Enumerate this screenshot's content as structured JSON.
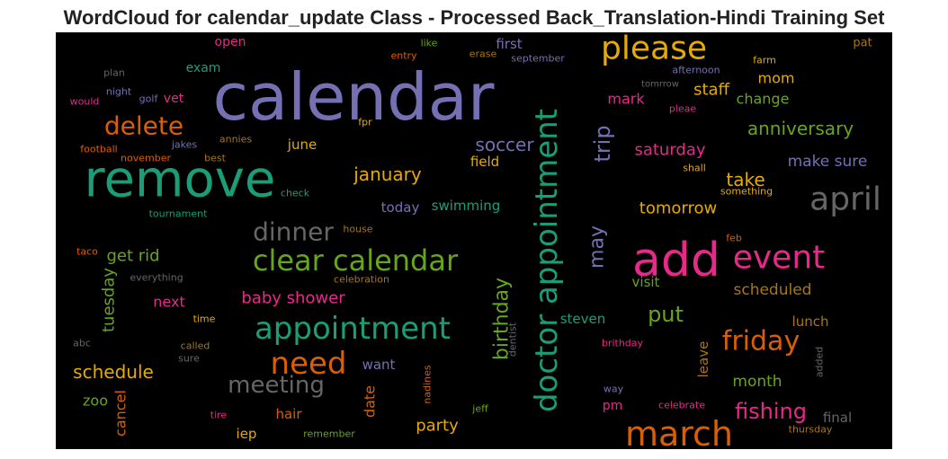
{
  "chart_data": {
    "type": "wordcloud",
    "title": "WordCloud for calendar_update Class - Processed Back_Translation-Hindi Training Set",
    "background": "#000000",
    "words": [
      {
        "text": "calendar",
        "weight": 72,
        "color": "#7570b3"
      },
      {
        "text": "remove",
        "weight": 56,
        "color": "#1b9e77"
      },
      {
        "text": "add",
        "weight": 52,
        "color": "#e7298a"
      },
      {
        "text": "doctor appointment",
        "weight": 34,
        "color": "#1b9e77"
      },
      {
        "text": "march",
        "weight": 38,
        "color": "#d95f02"
      },
      {
        "text": "please",
        "weight": 36,
        "color": "#e6ab02"
      },
      {
        "text": "april",
        "weight": 36,
        "color": "#666666"
      },
      {
        "text": "event",
        "weight": 36,
        "color": "#e7298a"
      },
      {
        "text": "appointment",
        "weight": 34,
        "color": "#1b9e77"
      },
      {
        "text": "clear calendar",
        "weight": 32,
        "color": "#66a61e"
      },
      {
        "text": "need",
        "weight": 34,
        "color": "#d95f02"
      },
      {
        "text": "delete",
        "weight": 28,
        "color": "#d95f02"
      },
      {
        "text": "friday",
        "weight": 30,
        "color": "#d95f02"
      },
      {
        "text": "dinner",
        "weight": 28,
        "color": "#666666"
      },
      {
        "text": "meeting",
        "weight": 26,
        "color": "#666666"
      },
      {
        "text": "trip",
        "weight": 24,
        "color": "#7570b3"
      },
      {
        "text": "may",
        "weight": 22,
        "color": "#7570b3"
      },
      {
        "text": "birthday",
        "weight": 22,
        "color": "#66a61e"
      },
      {
        "text": "put",
        "weight": 24,
        "color": "#66a61e"
      },
      {
        "text": "fishing",
        "weight": 24,
        "color": "#e7298a"
      },
      {
        "text": "soccer",
        "weight": 20,
        "color": "#7570b3"
      },
      {
        "text": "january",
        "weight": 20,
        "color": "#e6ab02"
      },
      {
        "text": "saturday",
        "weight": 18,
        "color": "#e7298a"
      },
      {
        "text": "anniversary",
        "weight": 20,
        "color": "#66a61e"
      },
      {
        "text": "tomorrow",
        "weight": 18,
        "color": "#e6ab02"
      },
      {
        "text": "take",
        "weight": 20,
        "color": "#e6ab02"
      },
      {
        "text": "make sure",
        "weight": 17,
        "color": "#7570b3"
      },
      {
        "text": "schedule",
        "weight": 20,
        "color": "#e6ab02"
      },
      {
        "text": "tuesday",
        "weight": 18,
        "color": "#66a61e"
      },
      {
        "text": "get rid",
        "weight": 18,
        "color": "#66a61e"
      },
      {
        "text": "next",
        "weight": 16,
        "color": "#e7298a"
      },
      {
        "text": "baby shower",
        "weight": 18,
        "color": "#e7298a"
      },
      {
        "text": "staff",
        "weight": 18,
        "color": "#e6ab02"
      },
      {
        "text": "change",
        "weight": 16,
        "color": "#66a61e"
      },
      {
        "text": "mom",
        "weight": 16,
        "color": "#e6ab02"
      },
      {
        "text": "mark",
        "weight": 16,
        "color": "#e7298a"
      },
      {
        "text": "scheduled",
        "weight": 17,
        "color": "#a6761d"
      },
      {
        "text": "lunch",
        "weight": 15,
        "color": "#a6761d"
      },
      {
        "text": "visit",
        "weight": 15,
        "color": "#66a61e"
      },
      {
        "text": "steven",
        "weight": 15,
        "color": "#1b9e77"
      },
      {
        "text": "month",
        "weight": 17,
        "color": "#66a61e"
      },
      {
        "text": "leave",
        "weight": 15,
        "color": "#a6761d"
      },
      {
        "text": "party",
        "weight": 18,
        "color": "#e6ab02"
      },
      {
        "text": "date",
        "weight": 16,
        "color": "#d95f02"
      },
      {
        "text": "cancel",
        "weight": 16,
        "color": "#d95f02"
      },
      {
        "text": "zoo",
        "weight": 16,
        "color": "#66a61e"
      },
      {
        "text": "hair",
        "weight": 15,
        "color": "#d95f02"
      },
      {
        "text": "iep",
        "weight": 15,
        "color": "#e6ab02"
      },
      {
        "text": "want",
        "weight": 15,
        "color": "#7570b3"
      },
      {
        "text": "swimming",
        "weight": 15,
        "color": "#1b9e77"
      },
      {
        "text": "today",
        "weight": 15,
        "color": "#7570b3"
      },
      {
        "text": "field",
        "weight": 15,
        "color": "#e6ab02"
      },
      {
        "text": "june",
        "weight": 15,
        "color": "#e6ab02"
      },
      {
        "text": "vet",
        "weight": 14,
        "color": "#e7298a"
      },
      {
        "text": "exam",
        "weight": 14,
        "color": "#1b9e77"
      },
      {
        "text": "open",
        "weight": 14,
        "color": "#e7298a"
      },
      {
        "text": "first",
        "weight": 15,
        "color": "#7570b3"
      },
      {
        "text": "pm",
        "weight": 14,
        "color": "#e7298a"
      },
      {
        "text": "final",
        "weight": 15,
        "color": "#666666"
      },
      {
        "text": "pat",
        "weight": 13,
        "color": "#a6761d"
      },
      {
        "text": "farm",
        "weight": 11,
        "color": "#e6ab02"
      },
      {
        "text": "afternoon",
        "weight": 11,
        "color": "#7570b3"
      },
      {
        "text": "tomrrow",
        "weight": 10,
        "color": "#666666"
      },
      {
        "text": "pleae",
        "weight": 11,
        "color": "#e7298a"
      },
      {
        "text": "fpr",
        "weight": 11,
        "color": "#e6ab02"
      },
      {
        "text": "september",
        "weight": 11,
        "color": "#7570b3"
      },
      {
        "text": "erase",
        "weight": 11,
        "color": "#a6761d"
      },
      {
        "text": "entry",
        "weight": 11,
        "color": "#d95f02"
      },
      {
        "text": "like",
        "weight": 11,
        "color": "#66a61e"
      },
      {
        "text": "plan",
        "weight": 11,
        "color": "#666666"
      },
      {
        "text": "night",
        "weight": 11,
        "color": "#7570b3"
      },
      {
        "text": "golf",
        "weight": 11,
        "color": "#7570b3"
      },
      {
        "text": "would",
        "weight": 11,
        "color": "#e7298a"
      },
      {
        "text": "football",
        "weight": 11,
        "color": "#d95f02"
      },
      {
        "text": "november",
        "weight": 11,
        "color": "#d95f02"
      },
      {
        "text": "jakes",
        "weight": 11,
        "color": "#7570b3"
      },
      {
        "text": "annies",
        "weight": 11,
        "color": "#a6761d"
      },
      {
        "text": "best",
        "weight": 11,
        "color": "#a6761d"
      },
      {
        "text": "check",
        "weight": 11,
        "color": "#1b9e77"
      },
      {
        "text": "tournament",
        "weight": 11,
        "color": "#1b9e77"
      },
      {
        "text": "house",
        "weight": 11,
        "color": "#a6761d"
      },
      {
        "text": "taco",
        "weight": 11,
        "color": "#d95f02"
      },
      {
        "text": "everything",
        "weight": 11,
        "color": "#666666"
      },
      {
        "text": "celebration",
        "weight": 11,
        "color": "#a6761d"
      },
      {
        "text": "something",
        "weight": 11,
        "color": "#e6ab02"
      },
      {
        "text": "shall",
        "weight": 11,
        "color": "#e6ab02"
      },
      {
        "text": "feb",
        "weight": 11,
        "color": "#d95f02"
      },
      {
        "text": "time",
        "weight": 11,
        "color": "#e6ab02"
      },
      {
        "text": "called",
        "weight": 11,
        "color": "#a6761d"
      },
      {
        "text": "sure",
        "weight": 11,
        "color": "#666666"
      },
      {
        "text": "abc",
        "weight": 11,
        "color": "#666666"
      },
      {
        "text": "dentist",
        "weight": 11,
        "color": "#666666"
      },
      {
        "text": "brithday",
        "weight": 11,
        "color": "#e7298a"
      },
      {
        "text": "added",
        "weight": 11,
        "color": "#666666"
      },
      {
        "text": "nadines",
        "weight": 11,
        "color": "#d95f02"
      },
      {
        "text": "way",
        "weight": 11,
        "color": "#7570b3"
      },
      {
        "text": "celebrate",
        "weight": 11,
        "color": "#e7298a"
      },
      {
        "text": "tire",
        "weight": 11,
        "color": "#e7298a"
      },
      {
        "text": "jeff",
        "weight": 11,
        "color": "#66a61e"
      },
      {
        "text": "remember",
        "weight": 11,
        "color": "#66a61e"
      },
      {
        "text": "thursday",
        "weight": 11,
        "color": "#a6761d"
      }
    ]
  }
}
